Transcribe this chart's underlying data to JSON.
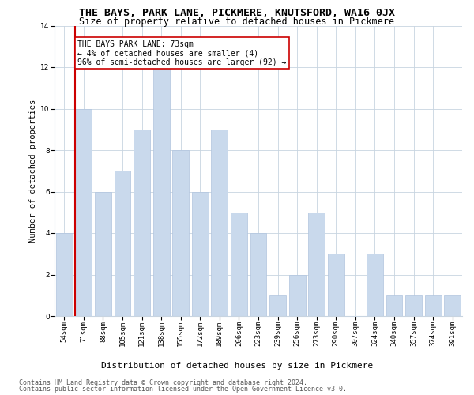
{
  "title": "THE BAYS, PARK LANE, PICKMERE, KNUTSFORD, WA16 0JX",
  "subtitle": "Size of property relative to detached houses in Pickmere",
  "xlabel": "Distribution of detached houses by size in Pickmere",
  "ylabel": "Number of detached properties",
  "categories": [
    "54sqm",
    "71sqm",
    "88sqm",
    "105sqm",
    "121sqm",
    "138sqm",
    "155sqm",
    "172sqm",
    "189sqm",
    "206sqm",
    "223sqm",
    "239sqm",
    "256sqm",
    "273sqm",
    "290sqm",
    "307sqm",
    "324sqm",
    "340sqm",
    "357sqm",
    "374sqm",
    "391sqm"
  ],
  "values": [
    4,
    10,
    6,
    7,
    9,
    12,
    8,
    6,
    9,
    5,
    4,
    1,
    2,
    5,
    3,
    0,
    3,
    1,
    1,
    1,
    1
  ],
  "bar_color": "#c9d9ec",
  "bar_edgecolor": "#b0c4de",
  "red_line_x": 0.58,
  "red_line_color": "#cc0000",
  "ylim": [
    0,
    14
  ],
  "yticks": [
    0,
    2,
    4,
    6,
    8,
    10,
    12,
    14
  ],
  "annotation_title": "THE BAYS PARK LANE: 73sqm",
  "annotation_line1": "← 4% of detached houses are smaller (4)",
  "annotation_line2": "96% of semi-detached houses are larger (92) →",
  "footer1": "Contains HM Land Registry data © Crown copyright and database right 2024.",
  "footer2": "Contains public sector information licensed under the Open Government Licence v3.0.",
  "bg_color": "#ffffff",
  "grid_color": "#c8d4e0",
  "title_fontsize": 9.5,
  "subtitle_fontsize": 8.5,
  "xlabel_fontsize": 8,
  "ylabel_fontsize": 7.5,
  "tick_fontsize": 6.5,
  "annot_fontsize": 7,
  "footer_fontsize": 6
}
